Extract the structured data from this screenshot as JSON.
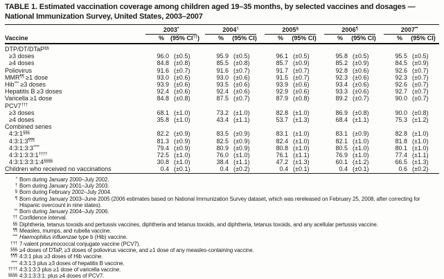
{
  "title": "TABLE 1. Estimated vaccination coverage among children aged 19–35 months, by selected vaccines and dosages — National Immunization Survey, United States, 2003–2007",
  "table": {
    "vaccine_header": "Vaccine",
    "pct_header": "%",
    "years": [
      {
        "year": "2003",
        "marker": "*",
        "ci_prefix": "(95% CI",
        "ci_marker": "††",
        "ci_suffix": ")"
      },
      {
        "year": "2004",
        "marker": "†",
        "ci_prefix": "(95% CI",
        "ci_marker": "",
        "ci_suffix": ")"
      },
      {
        "year": "2005",
        "marker": "§",
        "ci_prefix": "(95% CI",
        "ci_marker": "",
        "ci_suffix": ")"
      },
      {
        "year": "2006",
        "marker": "¶",
        "ci_prefix": "(95% CI",
        "ci_marker": "",
        "ci_suffix": ")"
      },
      {
        "year": "2007",
        "marker": "**",
        "ci_prefix": "(95% CI",
        "ci_marker": "",
        "ci_suffix": ")"
      }
    ],
    "rows": [
      {
        "label": "DTP/DT/DTaP",
        "marker": "§§",
        "section": true,
        "indent": false,
        "values": []
      },
      {
        "label": "≥3 doses",
        "marker": "",
        "section": false,
        "indent": true,
        "values": [
          [
            "96.0",
            "(±0.5)"
          ],
          [
            "95.9",
            "(±0.5)"
          ],
          [
            "96.1",
            "(±0.5)"
          ],
          [
            "95.8",
            "(±0.5)"
          ],
          [
            "95.5",
            "(±0.5)"
          ]
        ]
      },
      {
        "label": "≥4 doses",
        "marker": "",
        "section": false,
        "indent": true,
        "values": [
          [
            "84.8",
            "(±0.8)"
          ],
          [
            "85.5",
            "(±0.8)"
          ],
          [
            "85.7",
            "(±0.9)"
          ],
          [
            "85.2",
            "(±0.9)"
          ],
          [
            "84.5",
            "(±0.9)"
          ]
        ]
      },
      {
        "label": "Poliovirus",
        "marker": "",
        "section": false,
        "indent": false,
        "values": [
          [
            "91.6",
            "(±0.7)"
          ],
          [
            "91.6",
            "(±0.7)"
          ],
          [
            "91.7",
            "(±0.7)"
          ],
          [
            "92.8",
            "(±0.6)"
          ],
          [
            "92.6",
            "(±0.7)"
          ]
        ]
      },
      {
        "label": "MMR",
        "marker": "¶¶",
        "label_suffix": " ≥1 dose",
        "section": false,
        "indent": false,
        "values": [
          [
            "93.0",
            "(±0.6)"
          ],
          [
            "93.0",
            "(±0.6)"
          ],
          [
            "91.5",
            "(±0.7)"
          ],
          [
            "92.3",
            "(±0.6)"
          ],
          [
            "92.3",
            "(±0.7)"
          ]
        ]
      },
      {
        "label": "Hib",
        "marker": "***",
        "label_suffix": " ≥3 doses",
        "section": false,
        "indent": false,
        "values": [
          [
            "93.9",
            "(±0.6)"
          ],
          [
            "93.5",
            "(±0.6)"
          ],
          [
            "93.9",
            "(±0.6)"
          ],
          [
            "93.4",
            "(±0.6)"
          ],
          [
            "92.6",
            "(±0.7)"
          ]
        ]
      },
      {
        "label": "Hepatitis B ≥3 doses",
        "marker": "",
        "section": false,
        "indent": false,
        "values": [
          [
            "92.4",
            "(±0.6)"
          ],
          [
            "92.4",
            "(±0.6)"
          ],
          [
            "92.9",
            "(±0.6)"
          ],
          [
            "93.3",
            "(±0.6)"
          ],
          [
            "92.7",
            "(±0.7)"
          ]
        ]
      },
      {
        "label": "Varicella ≥1 dose",
        "marker": "",
        "section": false,
        "indent": false,
        "values": [
          [
            "84.8",
            "(±0.8)"
          ],
          [
            "87.5",
            "(±0.7)"
          ],
          [
            "87.9",
            "(±0.8)"
          ],
          [
            "89.2",
            "(±0.7)"
          ],
          [
            "90.0",
            "(±0.7)"
          ]
        ]
      },
      {
        "label": "PCV7",
        "marker": "†††",
        "section": true,
        "indent": false,
        "values": []
      },
      {
        "label": "≥3 doses",
        "marker": "",
        "section": false,
        "indent": true,
        "values": [
          [
            "68.1",
            "(±1.0)"
          ],
          [
            "73.2",
            "(±1.0)"
          ],
          [
            "82.8",
            "(±1.0)"
          ],
          [
            "86.9",
            "(±0.8)"
          ],
          [
            "90.0",
            "(±0.8)"
          ]
        ]
      },
      {
        "label": "≥4 doses",
        "marker": "",
        "section": false,
        "indent": true,
        "values": [
          [
            "35.8",
            "(±1.0)"
          ],
          [
            "43.4",
            "(±1.1)"
          ],
          [
            "53.7",
            "(±1.3)"
          ],
          [
            "68.4",
            "(±1.1)"
          ],
          [
            "75.3",
            "(±1.2)"
          ]
        ]
      },
      {
        "label": "Combined series",
        "marker": "",
        "section": true,
        "indent": false,
        "values": []
      },
      {
        "label": "4:3:1",
        "marker": "§§§",
        "section": false,
        "indent": true,
        "values": [
          [
            "82.2",
            "(±0.9)"
          ],
          [
            "83.5",
            "(±0.9)"
          ],
          [
            "83.1",
            "(±1.0)"
          ],
          [
            "83.1",
            "(±0.9)"
          ],
          [
            "82.8",
            "(±1.0)"
          ]
        ]
      },
      {
        "label": "4:3:1:3",
        "marker": "¶¶¶",
        "section": false,
        "indent": true,
        "values": [
          [
            "81.3",
            "(±0.9)"
          ],
          [
            "82.5",
            "(±0.9)"
          ],
          [
            "82.4",
            "(±1.0)"
          ],
          [
            "82.1",
            "(±1.0)"
          ],
          [
            "81.8",
            "(±1.0)"
          ]
        ]
      },
      {
        "label": "4:3:1:3:3",
        "marker": "****",
        "section": false,
        "indent": true,
        "values": [
          [
            "79.4",
            "(±0.9)"
          ],
          [
            "80.9",
            "(±0.9)"
          ],
          [
            "80.8",
            "(±1.0)"
          ],
          [
            "80.5",
            "(±1.0)"
          ],
          [
            "80.1",
            "(±1.0)"
          ]
        ]
      },
      {
        "label": "4:3:1:3:3:1",
        "marker": "††††",
        "section": false,
        "indent": true,
        "values": [
          [
            "72.5",
            "(±1.0)"
          ],
          [
            "76.0",
            "(±1.0)"
          ],
          [
            "76.1",
            "(±1.1)"
          ],
          [
            "76.9",
            "(±1.0)"
          ],
          [
            "77.4",
            "(±1.1)"
          ]
        ]
      },
      {
        "label": "4:3:1:3:3:1:4",
        "marker": "§§§§",
        "section": false,
        "indent": true,
        "values": [
          [
            "30.8",
            "(±1.0)"
          ],
          [
            "38.4",
            "(±1.1)"
          ],
          [
            "47.2",
            "(±1.3)"
          ],
          [
            "60.1",
            "(±1.2)"
          ],
          [
            "66.5",
            "(±1.3)"
          ]
        ]
      },
      {
        "label": "Children who received no vaccinations",
        "marker": "",
        "section": false,
        "indent": false,
        "values": [
          [
            "0.4",
            "(±0.1)"
          ],
          [
            "0.4",
            "(±0.2)"
          ],
          [
            "0.4",
            "(±0.1)"
          ],
          [
            "0.4",
            "(±0.1)"
          ],
          [
            "0.6",
            "(±0.2)"
          ]
        ]
      }
    ]
  },
  "footnotes": [
    {
      "marker": "*",
      "text": "Born during January 2000–July 2002."
    },
    {
      "marker": "†",
      "text": "Born during January 2001–July 2003."
    },
    {
      "marker": "§",
      "text": "Born during February 2002–July 2004."
    },
    {
      "marker": "¶",
      "text": "Born during January 2003–June 2005 (2006 estimates based on National Immunization Survey dataset, which was rereleased on February 25, 2008, after correcting for Hispanic overcount in nine states)."
    },
    {
      "marker": "**",
      "text": "Born during January 2004–July 2006."
    },
    {
      "marker": "††",
      "text": "Confidence interval."
    },
    {
      "marker": "§§",
      "text": "Diphtheria, tetanus toxoids and pertussis vaccines, diphtheria and tetanus toxoids, and diphtheria, tetanus toxoids, and any acellular pertussis vaccine."
    },
    {
      "marker": "¶¶",
      "text": "Measles, mumps, and rubella vaccine."
    },
    {
      "marker": "***",
      "italic": "Haemophilus influenzae",
      "text": " type b (Hib) vaccine."
    },
    {
      "marker": "†††",
      "text": "7-valent pneumococcal conjugate vaccine (PCV7)."
    },
    {
      "marker": "§§§",
      "text": "≥4 doses of DTaP, ≥3 doses of poliovirus vaccine, and ≥1 dose of any measles-containing vaccine."
    },
    {
      "marker": "¶¶¶",
      "text": "4:3:1 plus ≥3 doses of Hib vaccine."
    },
    {
      "marker": "****",
      "text": "4:3:1:3 plus ≥3 doses of hepatitis B vaccine."
    },
    {
      "marker": "††††",
      "text": "4:3:1:3:3 plus ≥1 dose of varicella vaccine."
    },
    {
      "marker": "§§§§",
      "text": "4:3:1:3:3:1: plus ≥4 doses of PCV7."
    }
  ]
}
